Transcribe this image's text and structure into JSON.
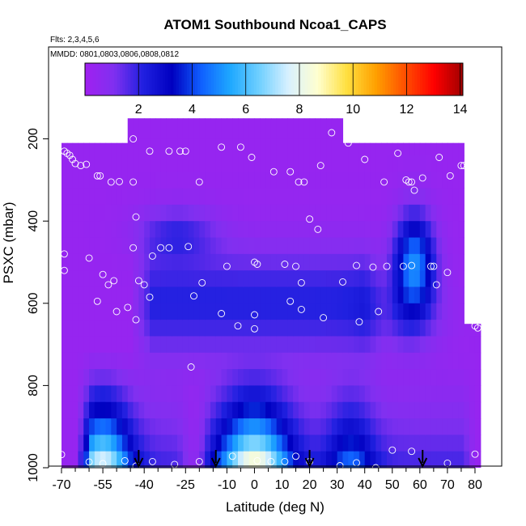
{
  "chart_data": {
    "type": "heatmap",
    "title": "ATOM1 Southbound Ncoa1_CAPS",
    "subtitle_flights": "Flts: 2,3,4,5,6",
    "subtitle_dates": "MMDD: 0801,0803,0806,0808,0812",
    "xlabel": "Latitude (deg N)",
    "ylabel": "PSXC (mbar)",
    "xlim": [
      -70,
      85
    ],
    "ylim": [
      1000,
      0
    ],
    "x_ticks": [
      -70,
      -55,
      -40,
      -25,
      -10,
      0,
      10,
      20,
      30,
      40,
      50,
      60,
      70,
      80
    ],
    "x_minor_ticks": [
      -65,
      -60,
      -50,
      -45,
      -35,
      -30,
      -20,
      -15,
      -5,
      5,
      15,
      25,
      35,
      45,
      55,
      65,
      75
    ],
    "y_ticks": [
      200,
      400,
      600,
      800,
      1000
    ],
    "colorbar": {
      "min": 0,
      "max": 14.1,
      "ticks": [
        2,
        4,
        6,
        8,
        10,
        12,
        14
      ],
      "colors": [
        "#a020f0",
        "#8030f0",
        "#2020e0",
        "#0000c0",
        "#1060ff",
        "#1ea8ff",
        "#70d0ff",
        "#d8f0ff",
        "#ffffd0",
        "#ffe040",
        "#ffa000",
        "#ff5000",
        "#ff0000",
        "#a00000"
      ]
    },
    "arrow_latitudes": [
      -42,
      -14,
      20,
      61
    ],
    "field": {
      "lat_min": -70,
      "lat_max": 84,
      "lat_step": 2,
      "pressure_bins": [
        [
          200,
          240
        ],
        [
          240,
          280
        ],
        [
          280,
          320
        ],
        [
          320,
          360
        ],
        [
          360,
          400
        ],
        [
          400,
          440
        ],
        [
          440,
          480
        ],
        [
          480,
          520
        ],
        [
          520,
          560
        ],
        [
          560,
          600
        ],
        [
          600,
          640
        ],
        [
          640,
          680
        ],
        [
          680,
          720
        ],
        [
          720,
          760
        ],
        [
          760,
          800
        ],
        [
          800,
          840
        ],
        [
          840,
          880
        ],
        [
          880,
          920
        ],
        [
          920,
          960
        ],
        [
          960,
          1000
        ]
      ]
    },
    "coverage": [
      {
        "lat_min": -45,
        "lat_max": 32,
        "p_top": 150
      },
      {
        "lat_min": -69,
        "lat_max": 77,
        "p_top": 210
      },
      {
        "lat_min": 77,
        "lat_max": 82,
        "p_top": 650
      }
    ],
    "point_samples": [
      [
        -69,
        230
      ],
      [
        -68,
        235
      ],
      [
        -67,
        240
      ],
      [
        -66,
        250
      ],
      [
        -65,
        260
      ],
      [
        -63,
        265
      ],
      [
        -61,
        262
      ],
      [
        -57,
        290
      ],
      [
        -56,
        290
      ],
      [
        -52,
        305
      ],
      [
        -49,
        304
      ],
      [
        -44,
        305
      ],
      [
        -44,
        200
      ],
      [
        -43,
        390
      ],
      [
        -38,
        230
      ],
      [
        -31,
        230
      ],
      [
        -27,
        230
      ],
      [
        -25,
        230
      ],
      [
        -20,
        305
      ],
      [
        -12,
        220
      ],
      [
        -5,
        220
      ],
      [
        -1,
        245
      ],
      [
        7,
        280
      ],
      [
        13,
        280
      ],
      [
        16,
        305
      ],
      [
        18,
        305
      ],
      [
        24,
        265
      ],
      [
        28,
        185
      ],
      [
        34,
        210
      ],
      [
        40,
        250
      ],
      [
        47,
        305
      ],
      [
        52,
        235
      ],
      [
        55,
        300
      ],
      [
        56,
        305
      ],
      [
        57,
        305
      ],
      [
        58,
        325
      ],
      [
        61,
        295
      ],
      [
        67,
        245
      ],
      [
        71,
        290
      ],
      [
        75,
        265
      ],
      [
        76,
        265
      ],
      [
        -69,
        480
      ],
      [
        -69,
        520
      ],
      [
        -60,
        490
      ],
      [
        -55,
        530
      ],
      [
        -53,
        555
      ],
      [
        -51,
        545
      ],
      [
        -44,
        465
      ],
      [
        -42,
        545
      ],
      [
        -40,
        555
      ],
      [
        -37,
        485
      ],
      [
        -34,
        465
      ],
      [
        -31,
        465
      ],
      [
        -24,
        462
      ],
      [
        -19,
        550
      ],
      [
        -10,
        510
      ],
      [
        0,
        500
      ],
      [
        1,
        505
      ],
      [
        11,
        505
      ],
      [
        15,
        510
      ],
      [
        17,
        550
      ],
      [
        20,
        395
      ],
      [
        23,
        420
      ],
      [
        32,
        548
      ],
      [
        37,
        508
      ],
      [
        43,
        512
      ],
      [
        48,
        510
      ],
      [
        54,
        510
      ],
      [
        57,
        508
      ],
      [
        64,
        510
      ],
      [
        65,
        510
      ],
      [
        66,
        555
      ],
      [
        70,
        525
      ],
      [
        80,
        510
      ],
      [
        -57,
        595
      ],
      [
        -50,
        620
      ],
      [
        -46,
        610
      ],
      [
        -43,
        640
      ],
      [
        -38,
        585
      ],
      [
        -22,
        582
      ],
      [
        -12,
        625
      ],
      [
        -6,
        655
      ],
      [
        0,
        628
      ],
      [
        0,
        662
      ],
      [
        13,
        595
      ],
      [
        17,
        615
      ],
      [
        25,
        635
      ],
      [
        38,
        645
      ],
      [
        45,
        620
      ],
      [
        80,
        655
      ],
      [
        81,
        660
      ],
      [
        -23,
        755
      ],
      [
        -70,
        968
      ],
      [
        -60,
        986
      ],
      [
        -55,
        990
      ],
      [
        -47,
        983
      ],
      [
        -43,
        996
      ],
      [
        -37,
        985
      ],
      [
        -29,
        992
      ],
      [
        -20,
        985
      ],
      [
        -8,
        972
      ],
      [
        1,
        983
      ],
      [
        6,
        985
      ],
      [
        11,
        985
      ],
      [
        15,
        972
      ],
      [
        20,
        985
      ],
      [
        31,
        995
      ],
      [
        37,
        988
      ],
      [
        44,
        1000
      ],
      [
        50,
        957
      ],
      [
        57,
        960
      ],
      [
        70,
        989
      ],
      [
        80,
        967
      ]
    ]
  }
}
